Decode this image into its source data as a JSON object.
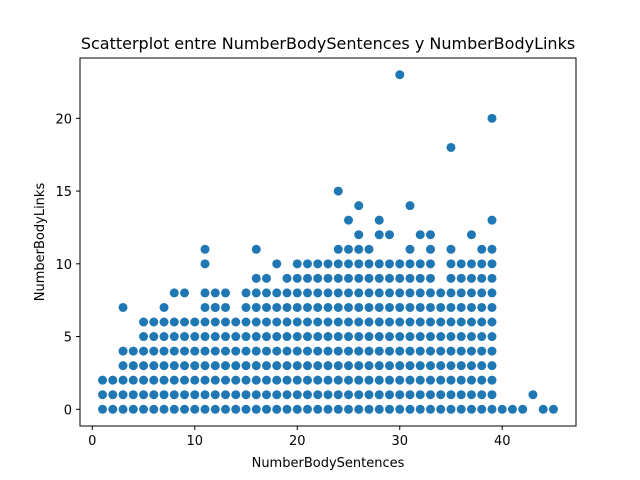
{
  "chart_data": {
    "type": "scatter",
    "title": "Scatterplot entre NumberBodySentences y NumberBodyLinks",
    "xlabel": "NumberBodySentences",
    "ylabel": "NumberBodyLinks",
    "xlim": [
      -1.2,
      47.2
    ],
    "ylim": [
      -1.15,
      24.15
    ],
    "xticks": [
      0,
      10,
      20,
      30,
      40
    ],
    "yticks": [
      0,
      5,
      10,
      15,
      20
    ],
    "xtick_labels": [
      "0",
      "10",
      "20",
      "30",
      "40"
    ],
    "ytick_labels": [
      "0",
      "5",
      "10",
      "15",
      "20"
    ],
    "grid": false,
    "legend": "none",
    "marker_color": "#1f77b4",
    "series": [
      {
        "ranges": [
          [
            1,
            0,
            2
          ],
          [
            2,
            0,
            2
          ],
          [
            3,
            0,
            4
          ],
          [
            4,
            0,
            4
          ],
          [
            5,
            0,
            6
          ],
          [
            6,
            0,
            6
          ],
          [
            7,
            0,
            6
          ],
          [
            8,
            0,
            6
          ],
          [
            9,
            0,
            6
          ],
          [
            10,
            0,
            6
          ],
          [
            11,
            0,
            8
          ],
          [
            12,
            0,
            8
          ],
          [
            13,
            0,
            8
          ],
          [
            14,
            0,
            6
          ],
          [
            15,
            0,
            8
          ],
          [
            16,
            0,
            9
          ],
          [
            17,
            0,
            9
          ],
          [
            18,
            0,
            8
          ],
          [
            19,
            0,
            9
          ],
          [
            20,
            0,
            10
          ],
          [
            21,
            0,
            10
          ],
          [
            22,
            0,
            10
          ],
          [
            23,
            0,
            10
          ],
          [
            24,
            0,
            11
          ],
          [
            25,
            0,
            11
          ],
          [
            26,
            0,
            11
          ],
          [
            27,
            0,
            11
          ],
          [
            28,
            0,
            10
          ],
          [
            29,
            0,
            10
          ],
          [
            30,
            0,
            10
          ],
          [
            31,
            0,
            11
          ],
          [
            32,
            0,
            10
          ],
          [
            33,
            0,
            11
          ],
          [
            34,
            0,
            8
          ],
          [
            35,
            0,
            11
          ],
          [
            36,
            0,
            10
          ],
          [
            37,
            0,
            10
          ],
          [
            38,
            0,
            11
          ],
          [
            39,
            0,
            11
          ]
        ],
        "points": [
          [
            3,
            7
          ],
          [
            7,
            7
          ],
          [
            8,
            8
          ],
          [
            9,
            8
          ],
          [
            11,
            10
          ],
          [
            11,
            11
          ],
          [
            12,
            7
          ],
          [
            16,
            11
          ],
          [
            18,
            10
          ],
          [
            24,
            15
          ],
          [
            25,
            13
          ],
          [
            26,
            12
          ],
          [
            26,
            14
          ],
          [
            28,
            12
          ],
          [
            28,
            13
          ],
          [
            29,
            12
          ],
          [
            30,
            23
          ],
          [
            31,
            14
          ],
          [
            32,
            12
          ],
          [
            33,
            12
          ],
          [
            35,
            18
          ],
          [
            37,
            12
          ],
          [
            39,
            13
          ],
          [
            39,
            20
          ],
          [
            40,
            0
          ],
          [
            41,
            0
          ],
          [
            42,
            0
          ],
          [
            43,
            1
          ],
          [
            44,
            0
          ],
          [
            45,
            0
          ]
        ]
      }
    ]
  }
}
